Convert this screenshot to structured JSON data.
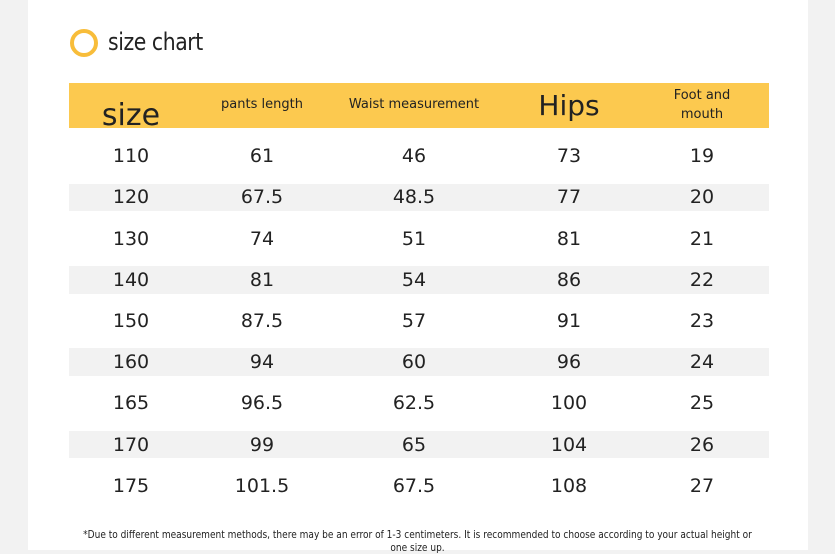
{
  "header": {
    "title": "size chart"
  },
  "table": {
    "columns": [
      "size",
      "pants length",
      "Waist measurement",
      "Hips",
      "Foot and mouth"
    ],
    "rows": [
      [
        110,
        61,
        46,
        73,
        19
      ],
      [
        120,
        67.5,
        48.5,
        77,
        20
      ],
      [
        130,
        74,
        51,
        81,
        21
      ],
      [
        140,
        81,
        54,
        86,
        22
      ],
      [
        150,
        87.5,
        57,
        91,
        23
      ],
      [
        160,
        94,
        60,
        96,
        24
      ],
      [
        165,
        96.5,
        62.5,
        100,
        25
      ],
      [
        170,
        99,
        65,
        104,
        26
      ],
      [
        175,
        101.5,
        67.5,
        108,
        27
      ]
    ]
  },
  "footnote": "*Due to different measurement methods, there may be an error of 1-3 centimeters. It is recommended to choose according to your actual height or one size up."
}
